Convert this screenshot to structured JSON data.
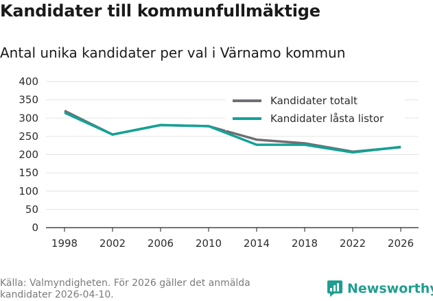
{
  "title": "Kandidater till kommunfullmäktige",
  "subtitle": "Antal unika kandidater per val i Värnamo kommun",
  "source": "Källa: Valmyndigheten. För 2026 gäller det anmälda kandidater 2026-04-10.",
  "brand": {
    "name": "Newsworthy",
    "icon": "newsworthy-logo-icon",
    "color": "#1f9e8f"
  },
  "chart_data": {
    "type": "line",
    "title": "Kandidater till kommunfullmäktige",
    "subtitle": "Antal unika kandidater per val i Värnamo kommun",
    "xlabel": "",
    "ylabel": "",
    "x": [
      1998,
      2002,
      2006,
      2010,
      2014,
      2018,
      2022,
      2026
    ],
    "x_tick_labels": [
      "1998",
      "2002",
      "2006",
      "2010",
      "2014",
      "2018",
      "2022",
      "2026"
    ],
    "y_ticks": [
      0,
      50,
      100,
      150,
      200,
      250,
      300,
      350,
      400
    ],
    "y_tick_labels": [
      "0",
      "50",
      "100",
      "150",
      "200",
      "250",
      "300",
      "350",
      "400"
    ],
    "ylim": [
      0,
      400
    ],
    "grid": true,
    "legend_position": "top-right",
    "series": [
      {
        "name": "Kandidater totalt",
        "color": "#6e6e73",
        "values": [
          320,
          255,
          281,
          278,
          241,
          231,
          208,
          220
        ]
      },
      {
        "name": "Kandidater låsta listor",
        "color": "#12a396",
        "values": [
          315,
          255,
          281,
          278,
          227,
          227,
          206,
          221
        ]
      }
    ]
  }
}
